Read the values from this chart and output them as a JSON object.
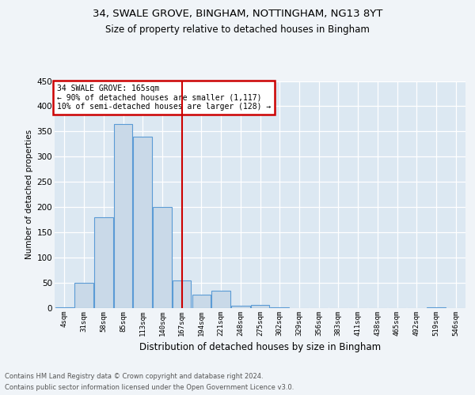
{
  "title1": "34, SWALE GROVE, BINGHAM, NOTTINGHAM, NG13 8YT",
  "title2": "Size of property relative to detached houses in Bingham",
  "xlabel": "Distribution of detached houses by size in Bingham",
  "ylabel": "Number of detached properties",
  "bin_labels": [
    "4sqm",
    "31sqm",
    "58sqm",
    "85sqm",
    "113sqm",
    "140sqm",
    "167sqm",
    "194sqm",
    "221sqm",
    "248sqm",
    "275sqm",
    "302sqm",
    "329sqm",
    "356sqm",
    "383sqm",
    "411sqm",
    "438sqm",
    "465sqm",
    "492sqm",
    "519sqm",
    "546sqm"
  ],
  "bar_heights": [
    2,
    50,
    180,
    365,
    340,
    200,
    55,
    26,
    34,
    5,
    7,
    2,
    0,
    0,
    0,
    0,
    0,
    0,
    0,
    2,
    0
  ],
  "bar_color": "#c9d9e8",
  "bar_edge_color": "#5b9bd5",
  "vline_x": 6,
  "vline_color": "#cc0000",
  "annotation_text": "34 SWALE GROVE: 165sqm\n← 90% of detached houses are smaller (1,117)\n10% of semi-detached houses are larger (128) →",
  "annotation_box_color": "#cc0000",
  "ylim": [
    0,
    450
  ],
  "yticks": [
    0,
    50,
    100,
    150,
    200,
    250,
    300,
    350,
    400,
    450
  ],
  "footnote1": "Contains HM Land Registry data © Crown copyright and database right 2024.",
  "footnote2": "Contains public sector information licensed under the Open Government Licence v3.0.",
  "fig_bg_color": "#f0f4f8",
  "plot_bg_color": "#dce8f2"
}
